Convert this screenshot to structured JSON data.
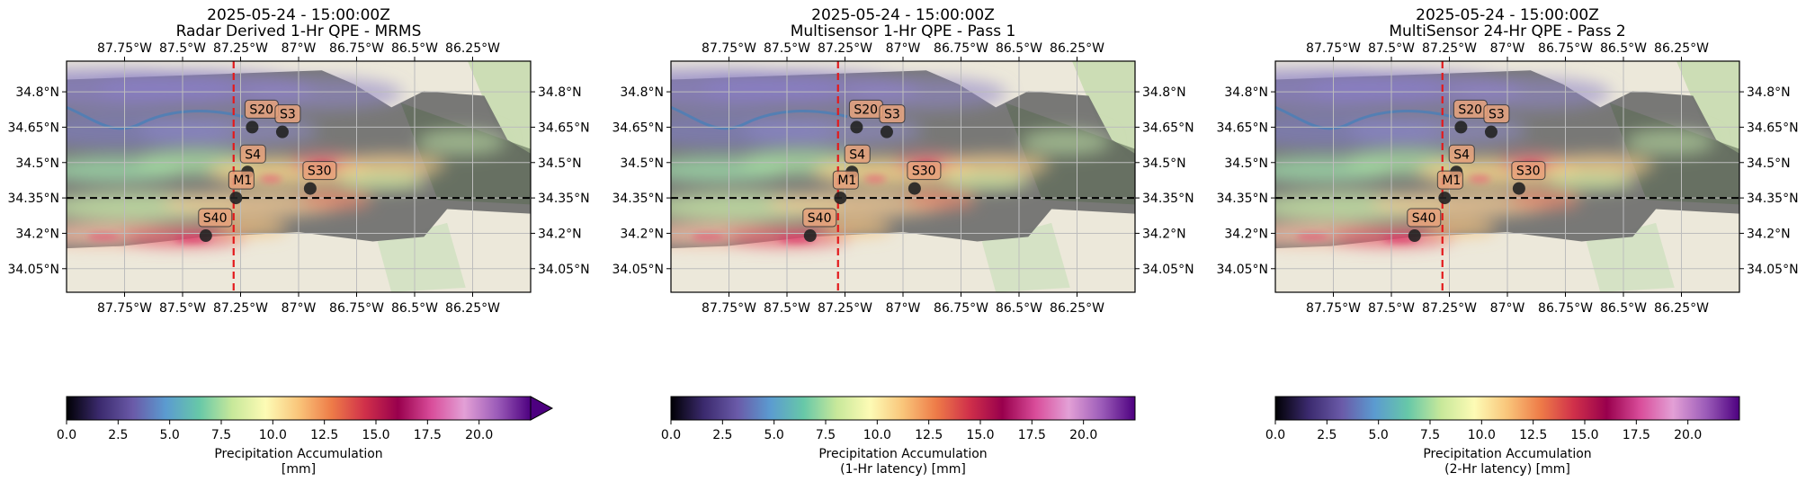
{
  "axis": {
    "lon_ticks": [
      "87.75°W",
      "87.5°W",
      "87.25°W",
      "87°W",
      "86.75°W",
      "86.5°W",
      "86.25°W"
    ],
    "lat_ticks": [
      "34.8°N",
      "34.65°N",
      "34.5°N",
      "34.35°N",
      "34.2°N",
      "34.05°N"
    ]
  },
  "panels": [
    {
      "date": "2025-05-24 - 15:00:00Z",
      "title": "Radar Derived 1-Hr QPE - MRMS",
      "colorbar": {
        "label1": "Precipitation Accumulation",
        "label2": "[mm]",
        "ticks": [
          "0.0",
          "2.5",
          "5.0",
          "7.5",
          "10.0",
          "12.5",
          "15.0",
          "17.5",
          "20.0"
        ],
        "extend": "max"
      }
    },
    {
      "date": "2025-05-24 - 15:00:00Z",
      "title": "Multisensor 1-Hr QPE - Pass 1",
      "colorbar": {
        "label1": "Precipitation Accumulation",
        "label2": "(1-Hr latency) [mm]",
        "ticks": [
          "0.0",
          "2.5",
          "5.0",
          "7.5",
          "10.0",
          "12.5",
          "15.0",
          "17.5",
          "20.0"
        ],
        "extend": "none"
      }
    },
    {
      "date": "2025-05-24 - 15:00:00Z",
      "title": "MultiSensor 24-Hr QPE - Pass 2",
      "colorbar": {
        "label1": "Precipitation Accumulation",
        "label2": "(2-Hr latency) [mm]",
        "ticks": [
          "0.0",
          "2.5",
          "5.0",
          "7.5",
          "10.0",
          "12.5",
          "15.0",
          "17.5",
          "20.0"
        ],
        "extend": "none"
      }
    }
  ],
  "stations": [
    {
      "id": "S20",
      "lon": -87.2,
      "lat": 34.65
    },
    {
      "id": "S3",
      "lon": -87.07,
      "lat": 34.63
    },
    {
      "id": "S4",
      "lon": -87.22,
      "lat": 34.46
    },
    {
      "id": "M1",
      "lon": -87.27,
      "lat": 34.35
    },
    {
      "id": "S30",
      "lon": -86.95,
      "lat": 34.39
    },
    {
      "id": "S40",
      "lon": -87.4,
      "lat": 34.19
    }
  ],
  "crosshair": {
    "lon": -87.28,
    "lat": 34.35
  },
  "colors": {
    "colormap": [
      "#000004",
      "#3b2a6e",
      "#6a5aa8",
      "#5b9bd0",
      "#67c8a8",
      "#c7e89a",
      "#fdfbb5",
      "#f9c57a",
      "#ee7c48",
      "#d0304a",
      "#99004d",
      "#d94d9a",
      "#e3a0d6",
      "#9b5bb8",
      "#4d0080"
    ],
    "crosshair_vertical": "#e31a1c",
    "crosshair_horizontal": "#000000",
    "marker": "#222222",
    "label_box": "#e8a37c"
  }
}
